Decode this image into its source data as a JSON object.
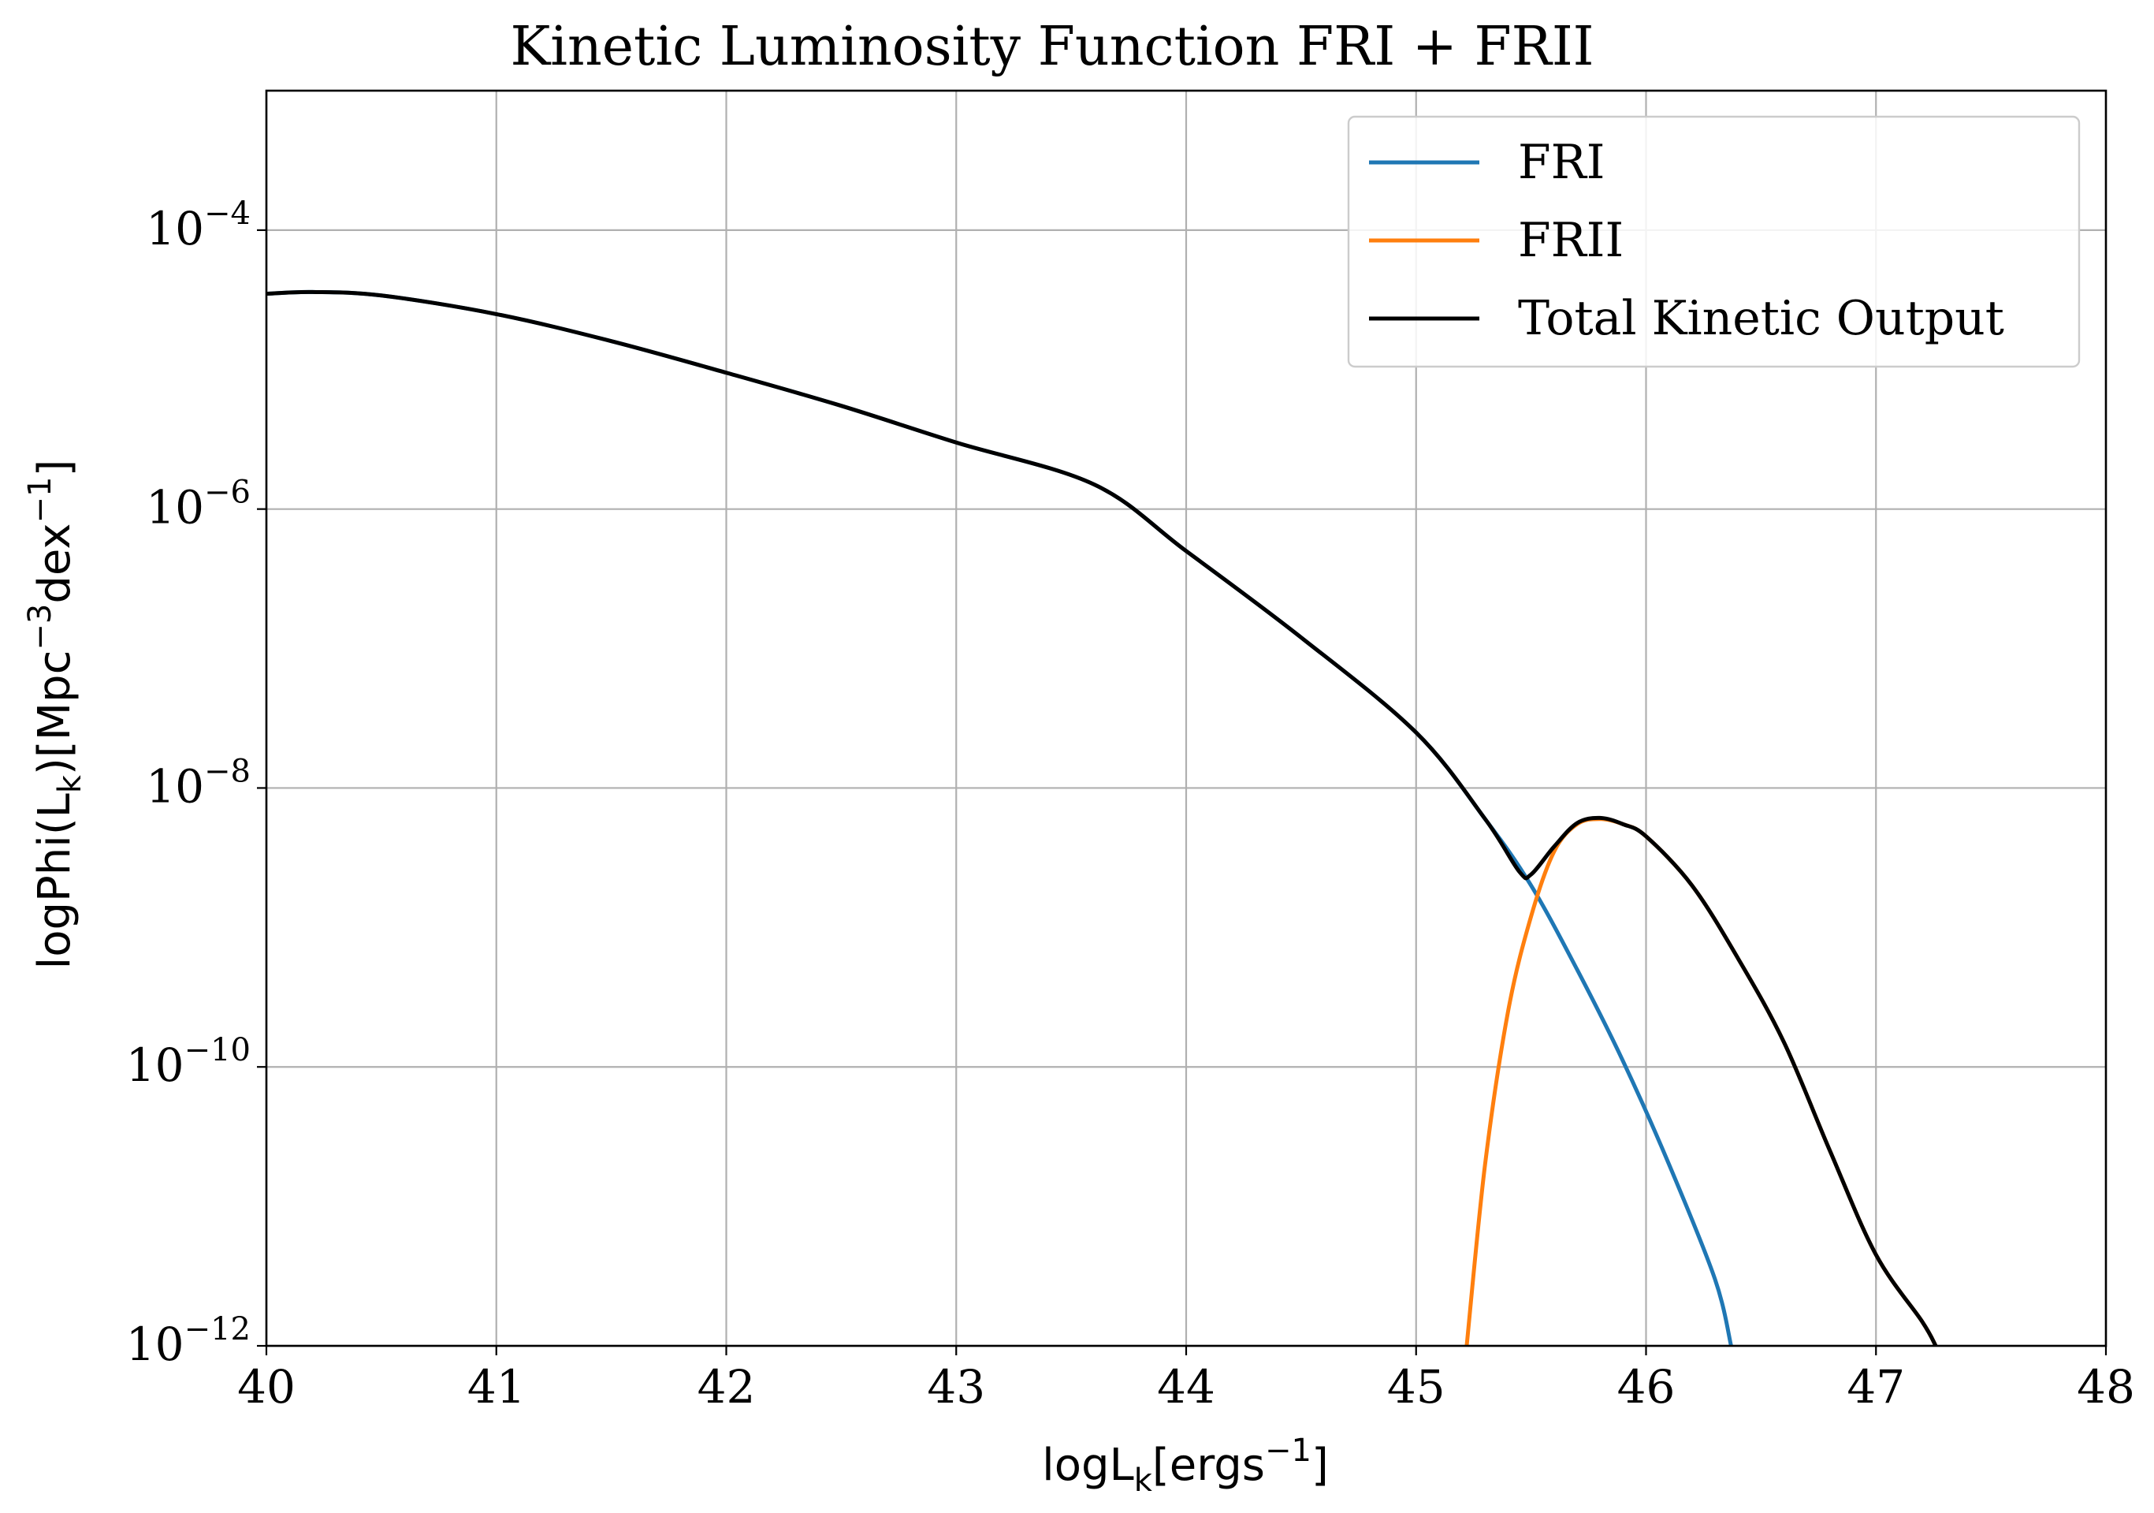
{
  "chart_data": {
    "type": "line",
    "title": "Kinetic Luminosity Function FRI + FRII",
    "xlabel": "logL_k[ergs^-1]",
    "ylabel": "logPhi(L_k)[Mpc^-3dex^-1]",
    "xlim": [
      40,
      48
    ],
    "ylim": [
      1e-12,
      0.001
    ],
    "yscale": "log",
    "grid": true,
    "legend_position": "top-right",
    "x_ticks": [
      40,
      41,
      42,
      43,
      44,
      45,
      46,
      47,
      48
    ],
    "y_ticks": [
      {
        "exponent": -4
      },
      {
        "exponent": -6
      },
      {
        "exponent": -8
      },
      {
        "exponent": -10
      },
      {
        "exponent": -12
      }
    ],
    "series": [
      {
        "name": "FRI",
        "color": "#1f77b4",
        "x": [
          40.0,
          40.2,
          40.5,
          41.0,
          41.5,
          42.0,
          42.5,
          43.0,
          43.6,
          44.0,
          44.5,
          45.0,
          45.3,
          45.5,
          45.7,
          45.9,
          46.1,
          46.3,
          46.37
        ],
        "y": [
          3.5e-05,
          3.6e-05,
          3.4e-05,
          2.5e-05,
          1.6e-05,
          9.5e-06,
          5.5e-06,
          3e-06,
          1.5e-06,
          5e-07,
          1.2e-07,
          2.5e-08,
          6e-09,
          2e-09,
          5e-10,
          1.1e-10,
          2e-11,
          3e-12,
          1e-12
        ]
      },
      {
        "name": "FRII",
        "color": "#ff7f0e",
        "x": [
          45.22,
          45.3,
          45.4,
          45.5,
          45.6,
          45.7,
          45.8,
          45.9,
          46.0,
          46.2,
          46.4,
          46.6,
          46.8,
          47.0,
          47.2,
          47.26
        ],
        "y": [
          1e-12,
          2e-11,
          2.5e-10,
          1.2e-09,
          3.5e-09,
          5.5e-09,
          6e-09,
          5.5e-09,
          4.5e-09,
          2e-09,
          6e-10,
          1.5e-10,
          2.5e-11,
          4.5e-12,
          1.5e-12,
          1e-12
        ]
      },
      {
        "name": "Total Kinetic Output",
        "color": "#000000",
        "x": [
          40.0,
          40.2,
          40.5,
          41.0,
          41.5,
          42.0,
          42.5,
          43.0,
          43.6,
          44.0,
          44.5,
          45.0,
          45.3,
          45.45,
          45.5,
          45.6,
          45.7,
          45.8,
          45.9,
          46.0,
          46.2,
          46.4,
          46.6,
          46.8,
          47.0,
          47.2,
          47.26
        ],
        "y": [
          3.5e-05,
          3.6e-05,
          3.4e-05,
          2.5e-05,
          1.6e-05,
          9.5e-06,
          5.5e-06,
          3e-06,
          1.5e-06,
          5e-07,
          1.2e-07,
          2.5e-08,
          6e-09,
          2.5e-09,
          2.4e-09,
          3.8e-09,
          5.6e-09,
          6.1e-09,
          5.5e-09,
          4.5e-09,
          2e-09,
          6e-10,
          1.5e-10,
          2.5e-11,
          4.5e-12,
          1.5e-12,
          1e-12
        ]
      }
    ]
  }
}
